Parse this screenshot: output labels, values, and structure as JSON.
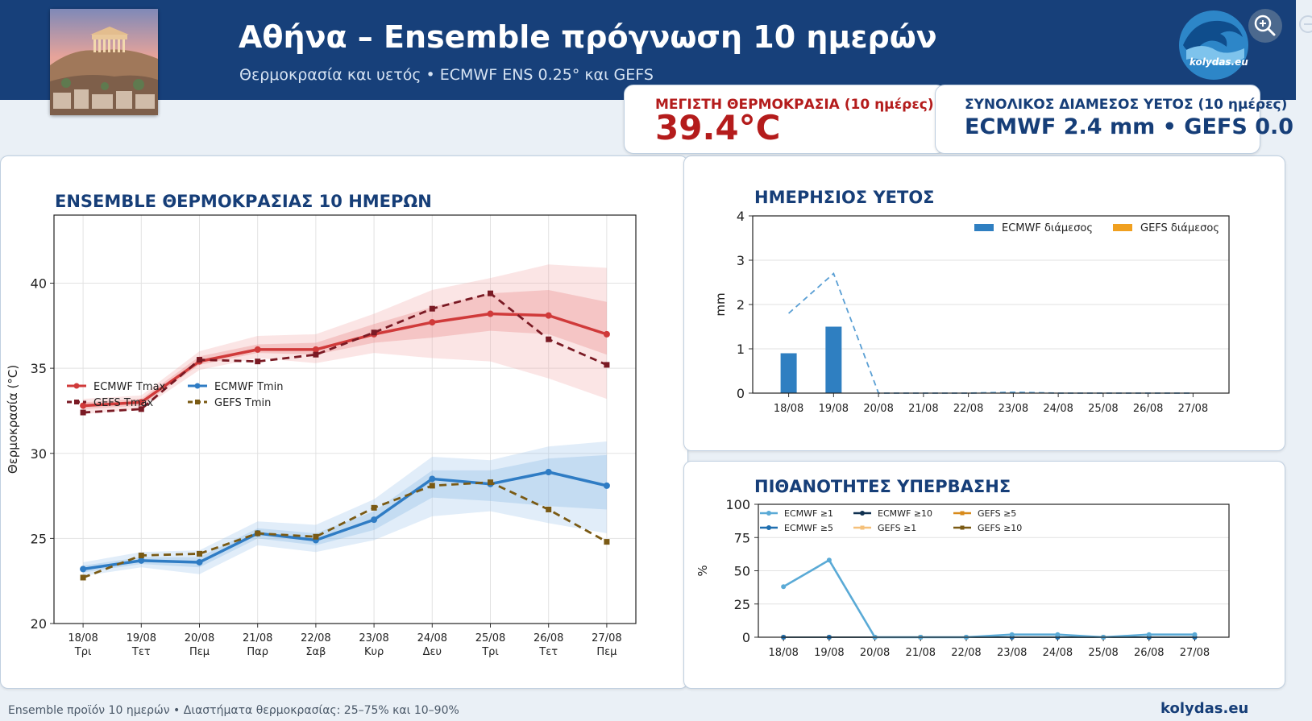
{
  "header": {
    "title": "Αθήνα – Ensemble πρόγνωση 10 ημερών",
    "subtitle": "Θερμοκρασία και υετός • ECMWF ENS 0.25° και GEFS",
    "logo_text": "kolydas.eu"
  },
  "cards": {
    "max_temp": {
      "label": "ΜΕΓΙΣΤΗ ΘΕΡΜΟΚΡΑΣΙΑ (10 ημέρες)",
      "value": "39.4°C"
    },
    "total_rain": {
      "label": "ΣΥΝΟΛΙΚΟΣ ΔΙΑΜΕΣΟΣ ΥΕΤΟΣ (10 ημέρες)",
      "value": "ECMWF 2.4 mm  •  GEFS 0.0"
    }
  },
  "icons": [
    "acropolis-photo",
    "kolydas-logo",
    "zoom-in-icon"
  ],
  "colors": {
    "header_bg": "#17407a",
    "ecmwf_tmax": "#d03a3a",
    "gefs_tmax": "#7a1a24",
    "ecmwf_tmin": "#2f7cc4",
    "gefs_tmin": "#7a5a14",
    "rain_ecmwf": "#2f7fc1",
    "rain_gefs": "#f0a020"
  },
  "chart_data": [
    {
      "type": "line",
      "title": "ENSEMBLE ΘΕΡΜΟΚΡΑΣΙΑΣ 10 ΗΜΕΡΩΝ",
      "ylabel": "Θερμοκρασία (°C)",
      "ylim": [
        20,
        44
      ],
      "yticks": [
        20,
        25,
        30,
        35,
        40
      ],
      "grid": true,
      "legend": "top-left",
      "categories": [
        "18/08",
        "19/08",
        "20/08",
        "21/08",
        "22/08",
        "23/08",
        "24/08",
        "25/08",
        "26/08",
        "27/08"
      ],
      "weekdays": [
        "Τρι",
        "Τετ",
        "Πεμ",
        "Παρ",
        "Σαβ",
        "Κυρ",
        "Δευ",
        "Τρι",
        "Τετ",
        "Πεμ"
      ],
      "series": [
        {
          "name": "ECMWF Tmax",
          "style": "solid",
          "values": [
            32.8,
            33.0,
            35.4,
            36.1,
            36.1,
            37.0,
            37.7,
            38.2,
            38.1,
            37.0
          ]
        },
        {
          "name": "GEFS Tmax",
          "style": "dashed",
          "values": [
            32.4,
            32.6,
            35.5,
            35.4,
            35.8,
            37.1,
            38.5,
            39.4,
            36.7,
            35.2
          ]
        },
        {
          "name": "ECMWF Tmin",
          "style": "solid",
          "values": [
            23.2,
            23.7,
            23.6,
            25.3,
            24.9,
            26.1,
            28.5,
            28.2,
            28.9,
            28.1
          ]
        },
        {
          "name": "GEFS Tmin",
          "style": "dashed",
          "values": [
            22.7,
            24.0,
            24.1,
            25.3,
            25.1,
            26.8,
            28.1,
            28.3,
            26.7,
            24.8
          ]
        }
      ],
      "bands": [
        {
          "of": "ECMWF Tmax",
          "range": "25–75%",
          "lower": [
            32.6,
            32.8,
            35.2,
            35.9,
            35.8,
            36.5,
            36.8,
            37.2,
            37.0,
            35.8
          ],
          "upper": [
            33.0,
            33.2,
            35.7,
            36.4,
            36.5,
            37.6,
            38.6,
            39.4,
            39.6,
            38.9
          ]
        },
        {
          "of": "ECMWF Tmax",
          "range": "10–90%",
          "lower": [
            32.3,
            32.6,
            34.9,
            35.6,
            35.3,
            35.9,
            35.6,
            35.4,
            34.4,
            33.2
          ],
          "upper": [
            33.2,
            33.4,
            36.0,
            36.9,
            37.0,
            38.2,
            39.6,
            40.3,
            41.1,
            40.9
          ]
        },
        {
          "of": "ECMWF Tmin",
          "range": "25–75%",
          "lower": [
            23.0,
            23.5,
            23.3,
            25.0,
            24.6,
            25.5,
            27.4,
            27.2,
            26.9,
            26.7
          ],
          "upper": [
            23.4,
            23.9,
            23.9,
            25.6,
            25.3,
            26.6,
            29.0,
            29.0,
            29.7,
            29.9
          ]
        },
        {
          "of": "ECMWF Tmin",
          "range": "10–90%",
          "lower": [
            22.8,
            23.3,
            22.9,
            24.6,
            24.2,
            24.9,
            26.3,
            26.6,
            25.9,
            25.3
          ],
          "upper": [
            23.6,
            24.2,
            24.3,
            26.0,
            25.8,
            27.3,
            29.8,
            29.6,
            30.4,
            30.7
          ]
        }
      ]
    },
    {
      "type": "bar",
      "title": "ΗΜΕΡΗΣΙΟΣ ΥΕΤΟΣ",
      "ylabel": "mm",
      "ylim": [
        0,
        4
      ],
      "yticks": [
        0,
        1,
        2,
        3,
        4
      ],
      "grid": true,
      "legend": "top-right",
      "categories": [
        "18/08",
        "19/08",
        "20/08",
        "21/08",
        "22/08",
        "23/08",
        "24/08",
        "25/08",
        "26/08",
        "27/08"
      ],
      "series": [
        {
          "name": "ECMWF διάμεσος",
          "values": [
            0.9,
            1.5,
            0,
            0,
            0,
            0,
            0,
            0,
            0,
            0
          ]
        },
        {
          "name": "GEFS διάμεσος",
          "values": [
            0,
            0,
            0,
            0,
            0,
            0,
            0,
            0,
            0,
            0
          ]
        }
      ],
      "upper_line": [
        1.8,
        2.7,
        0.0,
        0.0,
        0.0,
        0.02,
        0.0,
        0.0,
        0.0,
        0.0
      ]
    },
    {
      "type": "line",
      "title": "ΠΙΘΑΝΟΤΗΤΕΣ ΥΠΕΡΒΑΣΗΣ",
      "ylabel": "%",
      "ylim": [
        0,
        100
      ],
      "yticks": [
        0,
        25,
        50,
        75,
        100
      ],
      "grid": true,
      "legend": "top-left",
      "categories": [
        "18/08",
        "19/08",
        "20/08",
        "21/08",
        "22/08",
        "23/08",
        "24/08",
        "25/08",
        "26/08",
        "27/08"
      ],
      "series": [
        {
          "name": "ECMWF ≥1",
          "values": [
            38,
            58,
            0,
            0,
            0,
            2,
            2,
            0,
            2,
            2
          ]
        },
        {
          "name": "ECMWF ≥5",
          "values": [
            0,
            0,
            0,
            0,
            0,
            0,
            0,
            0,
            0,
            0
          ]
        },
        {
          "name": "ECMWF ≥10",
          "values": [
            0,
            0,
            0,
            0,
            0,
            0,
            0,
            0,
            0,
            0
          ]
        },
        {
          "name": "GEFS ≥1",
          "values": [
            0,
            0,
            0,
            0,
            0,
            0,
            0,
            0,
            0,
            0
          ]
        },
        {
          "name": "GEFS ≥5",
          "values": [
            0,
            0,
            0,
            0,
            0,
            0,
            0,
            0,
            0,
            0
          ]
        },
        {
          "name": "GEFS ≥10",
          "values": [
            0,
            0,
            0,
            0,
            0,
            0,
            0,
            0,
            0,
            0
          ]
        }
      ]
    }
  ],
  "footer": {
    "note": "Ensemble προϊόν 10 ημερών • Διαστήματα θερμοκρασίας: 25–75% και 10–90%",
    "site": "kolydas.eu"
  }
}
